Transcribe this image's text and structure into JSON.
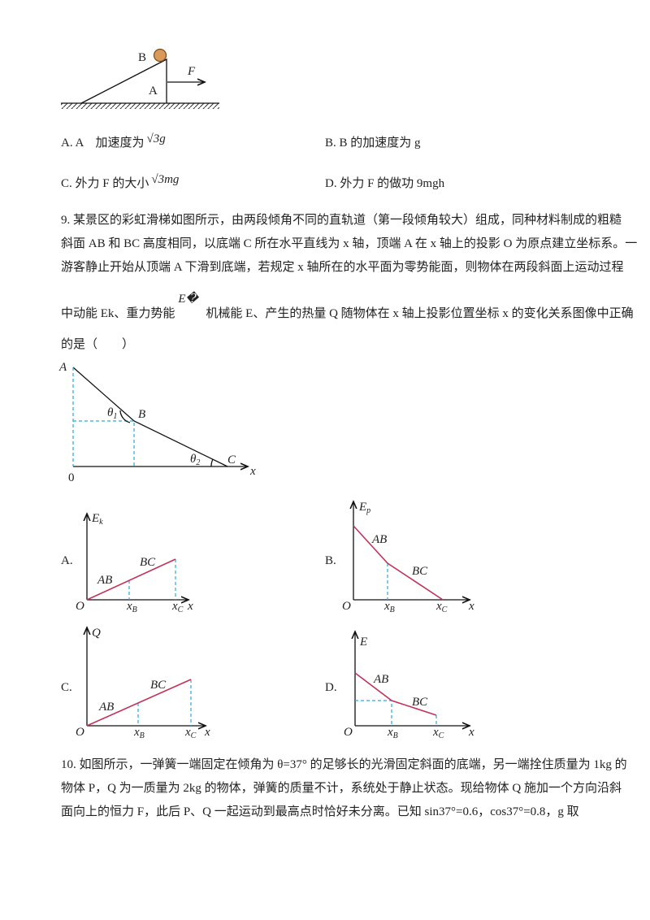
{
  "figure8": {
    "ball_label": "B",
    "block_label": "A",
    "force_label": "F"
  },
  "options8": [
    {
      "text": "A. A　加速度为",
      "math": "√3g"
    },
    {
      "text": "B. B 的加速度为 g"
    },
    {
      "text": "C. 外力 F 的大小",
      "math": "√3mg"
    },
    {
      "text": "D. 外力 F 的做功 9mgh"
    }
  ],
  "question9": {
    "lines": [
      "9. 某景区的彩虹滑梯如图所示，由两段倾角不同的直轨道（第一段倾角较大）组成，同种材料制成的粗糙",
      "斜面 AB 和 BC 高度相同，以底端 C 所在水平直线为 x 轴，顶端 A 在 x 轴上的投影 O 为原点建立坐标系。一",
      "游客静止开始从顶端 A 下滑到底端，若规定 x 轴所在的水平面为零势能面，则物体在两段斜面上运动过程"
    ],
    "line4": [
      "中动能 Ek、重力势能",
      "E�",
      "机械能 E、产生的热量 Q 随物体在 x 轴上投影位置坐标 x 的变化关系图像中正确"
    ],
    "line5": "的是（　　）"
  },
  "figure9": {
    "point_a": "A",
    "point_b": "B",
    "point_c": "C",
    "angle1": {
      "main": "θ",
      "sub": "1"
    },
    "angle2": {
      "main": "θ",
      "sub": "2"
    },
    "origin": "0",
    "x_axis": "x"
  },
  "graphs": [
    {
      "option": "A.",
      "y_label": {
        "main": "E",
        "sub": "k"
      },
      "segment1": "AB",
      "segment2": "BC",
      "origin": "O",
      "x_b": {
        "main": "x",
        "sub": "B"
      },
      "x_c": {
        "main": "x",
        "sub": "C"
      },
      "x_axis": "x"
    },
    {
      "option": "B.",
      "y_label": {
        "main": "E",
        "sub": "p"
      },
      "segment1": "AB",
      "segment2": "BC",
      "origin": "O",
      "x_b": {
        "main": "x",
        "sub": "B"
      },
      "x_c": {
        "main": "x",
        "sub": "C"
      },
      "x_axis": "x"
    },
    {
      "option": "C.",
      "y_label": "Q",
      "segment1": "AB",
      "segment2": "BC",
      "origin": "O",
      "x_b": {
        "main": "x",
        "sub": "B"
      },
      "x_c": {
        "main": "x",
        "sub": "C"
      },
      "x_axis": "x"
    },
    {
      "option": "D.",
      "y_label": "E",
      "segment1": "AB",
      "segment2": "BC",
      "origin": "O",
      "x_b": {
        "main": "x",
        "sub": "B"
      },
      "x_c": {
        "main": "x",
        "sub": "C"
      },
      "x_axis": "x"
    }
  ],
  "question10": {
    "lines": [
      "10. 如图所示，一弹簧一端固定在倾角为 θ=37° 的足够长的光滑固定斜面的底端，另一端拴住质量为 1kg 的",
      "物体 P，Q 为一质量为 2kg 的物体，弹簧的质量不计，系统处于静止状态。现给物体 Q 施加一个方向沿斜",
      "面向上的恒力 F，此后 P、Q 一起运动到最高点时恰好未分离。已知 sin37°=0.6，cos37°=0.8，g 取"
    ]
  }
}
